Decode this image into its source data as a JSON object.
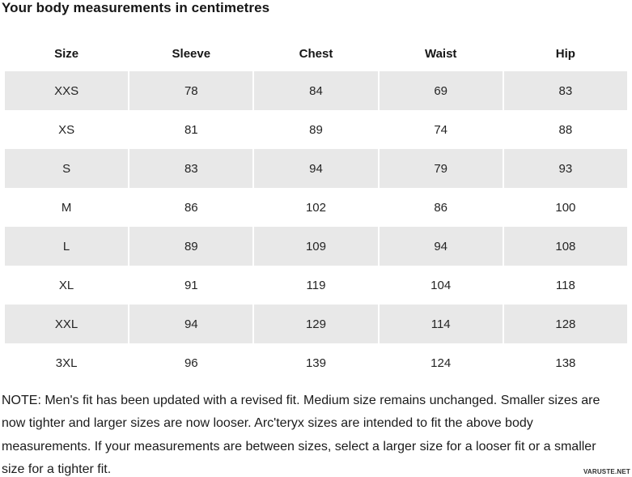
{
  "page": {
    "title": "Your body measurements in centimetres",
    "watermark": "VARUSTE.NET"
  },
  "table": {
    "headers": [
      "Size",
      "Sleeve",
      "Chest",
      "Waist",
      "Hip"
    ],
    "rows": [
      {
        "size": "XXS",
        "sleeve": "78",
        "chest": "84",
        "waist": "69",
        "hip": "83",
        "striped": true
      },
      {
        "size": "XS",
        "sleeve": "81",
        "chest": "89",
        "waist": "74",
        "hip": "88",
        "striped": false
      },
      {
        "size": "S",
        "sleeve": "83",
        "chest": "94",
        "waist": "79",
        "hip": "93",
        "striped": true
      },
      {
        "size": "M",
        "sleeve": "86",
        "chest": "102",
        "waist": "86",
        "hip": "100",
        "striped": false
      },
      {
        "size": "L",
        "sleeve": "89",
        "chest": "109",
        "waist": "94",
        "hip": "108",
        "striped": true
      },
      {
        "size": "XL",
        "sleeve": "91",
        "chest": "119",
        "waist": "104",
        "hip": "118",
        "striped": false
      },
      {
        "size": "XXL",
        "sleeve": "94",
        "chest": "129",
        "waist": "114",
        "hip": "128",
        "striped": true
      },
      {
        "size": "3XL",
        "sleeve": "96",
        "chest": "139",
        "waist": "124",
        "hip": "138",
        "striped": false
      }
    ]
  },
  "note": {
    "full_text": "NOTE: Men's fit has been updated with a revised fit. Medium size remains unchanged. Smaller sizes are now tighter and larger sizes are now looser. Arc'teryx sizes are intended to fit the above body measurements. If your measurements are between sizes, select a larger size for a looser fit or a smaller size for a tighter fit.",
    "lines": [
      "NOTE: Men's fit has been updated with a revised fit. Medium size remains unchanged. Smaller sizes are",
      "now tighter and larger sizes are now looser. Arc'teryx sizes are intended to fit the above body",
      "measurements. If your measurements are between sizes, select a larger size for a looser fit or a smaller",
      "size for a tighter fit."
    ]
  },
  "colors": {
    "stripe": "#e8e8e8",
    "text": "#242424",
    "heading": "#161616"
  }
}
